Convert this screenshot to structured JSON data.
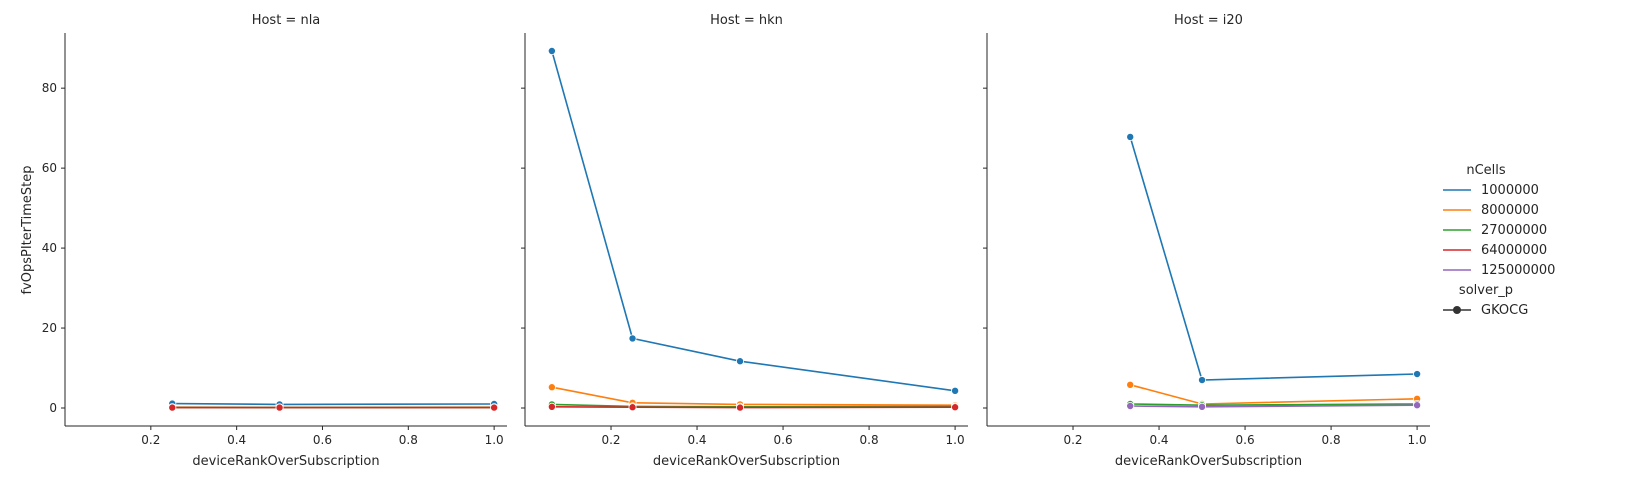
{
  "chart_data": {
    "type": "line",
    "xlabel": "deviceRankOverSubscription",
    "ylabel": "fvOpsPIterTimeStep",
    "xlim": [
      0.0,
      1.03
    ],
    "ylim": [
      -4.5,
      93.8
    ],
    "xticks": [
      0.2,
      0.4,
      0.6,
      0.8,
      1.0
    ],
    "yticks": [
      0,
      20,
      40,
      60,
      80
    ],
    "xtick_labels": [
      "0.2",
      "0.4",
      "0.6",
      "0.8",
      "1.0"
    ],
    "ytick_labels": [
      "0",
      "20",
      "40",
      "60",
      "80"
    ],
    "shared_y": true,
    "grid": false,
    "marker": "circle",
    "legend": {
      "placement": "right",
      "hue_title": "nCells",
      "style_title": "solver_p",
      "style_entries": [
        "GKOCG"
      ],
      "entries": [
        {
          "name": "1000000",
          "color": "#1f77b4"
        },
        {
          "name": "8000000",
          "color": "#ff7f0e"
        },
        {
          "name": "27000000",
          "color": "#2ca02c"
        },
        {
          "name": "64000000",
          "color": "#d62728"
        },
        {
          "name": "125000000",
          "color": "#9467bd"
        }
      ]
    },
    "panels": [
      {
        "title": "Host = nla",
        "series": [
          {
            "name": "1000000",
            "x": [
              0.25,
              0.5,
              1.0
            ],
            "y": [
              1.1,
              0.9,
              1.0
            ]
          },
          {
            "name": "8000000",
            "x": [
              0.25,
              0.5,
              1.0
            ],
            "y": [
              0.2,
              0.15,
              0.2
            ]
          },
          {
            "name": "27000000",
            "x": [
              0.25,
              0.5,
              1.0
            ],
            "y": [
              0.1,
              0.1,
              0.1
            ]
          },
          {
            "name": "64000000",
            "x": [
              0.25,
              0.5,
              1.0
            ],
            "y": [
              0.1,
              0.1,
              0.1
            ]
          }
        ]
      },
      {
        "title": "Host = hkn",
        "series": [
          {
            "name": "1000000",
            "x": [
              0.0625,
              0.25,
              0.5,
              1.0
            ],
            "y": [
              89.3,
              17.4,
              11.7,
              4.3
            ]
          },
          {
            "name": "8000000",
            "x": [
              0.0625,
              0.25,
              0.5,
              1.0
            ],
            "y": [
              5.2,
              1.3,
              0.9,
              0.7
            ]
          },
          {
            "name": "27000000",
            "x": [
              0.0625,
              0.25,
              0.5,
              1.0
            ],
            "y": [
              0.9,
              0.4,
              0.3,
              0.4
            ]
          },
          {
            "name": "64000000",
            "x": [
              0.0625,
              0.25,
              0.5,
              1.0
            ],
            "y": [
              0.3,
              0.2,
              0.1,
              0.2
            ]
          }
        ]
      },
      {
        "title": "Host = i20",
        "series": [
          {
            "name": "1000000",
            "x": [
              0.333,
              0.5,
              1.0
            ],
            "y": [
              67.8,
              7.0,
              8.5
            ]
          },
          {
            "name": "8000000",
            "x": [
              0.333,
              0.5,
              1.0
            ],
            "y": [
              5.8,
              1.0,
              2.3
            ]
          },
          {
            "name": "27000000",
            "x": [
              0.333,
              0.5,
              1.0
            ],
            "y": [
              1.0,
              0.7,
              1.0
            ]
          },
          {
            "name": "125000000",
            "x": [
              0.333,
              0.5,
              1.0
            ],
            "y": [
              0.5,
              0.3,
              0.7
            ]
          }
        ]
      }
    ]
  }
}
